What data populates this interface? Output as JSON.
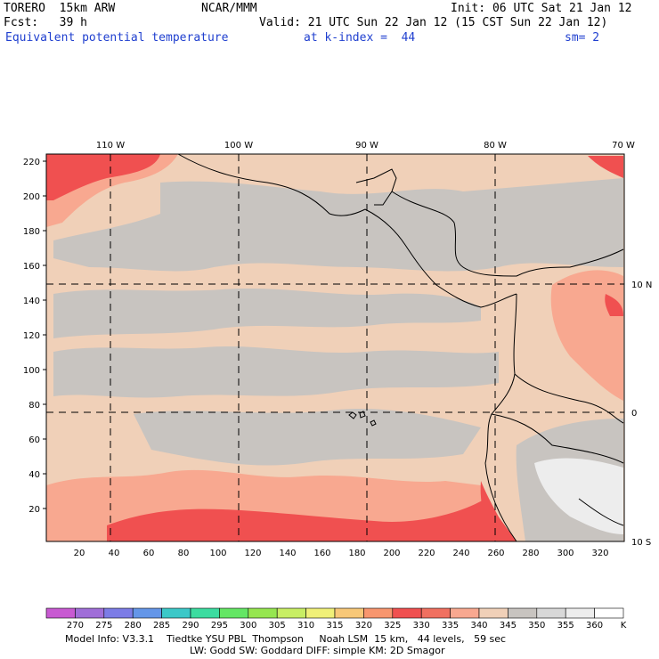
{
  "header": {
    "model": "TORERO  15km ARW",
    "org": "NCAR/MMM",
    "init": "Init: 06 UTC Sat 21 Jan 12",
    "fcst": "Fcst:   39 h",
    "valid": "Valid: 21 UTC Sun 22 Jan 12 (15 CST Sun 22 Jan 12)",
    "field": "Equivalent potential temperature",
    "level": "at k-index =  44",
    "smooth": "sm= 2"
  },
  "map": {
    "lon_labels": [
      "110 W",
      "100 W",
      "90 W",
      "80 W",
      "70 W"
    ],
    "lat_labels": [
      "10 N",
      "0",
      "10 S"
    ],
    "y_ticks": [
      "220",
      "200",
      "180",
      "160",
      "140",
      "120",
      "100",
      "80",
      "60",
      "40",
      "20"
    ],
    "x_ticks": [
      "20",
      "40",
      "60",
      "80",
      "100",
      "120",
      "140",
      "160",
      "180",
      "200",
      "220",
      "240",
      "260",
      "280",
      "300",
      "320"
    ]
  },
  "colorbar": {
    "unit": "K",
    "labels": [
      "270",
      "275",
      "280",
      "285",
      "290",
      "295",
      "300",
      "305",
      "310",
      "315",
      "320",
      "325",
      "330",
      "335",
      "340",
      "345",
      "350",
      "355",
      "360"
    ],
    "colors": [
      "#c85ad2",
      "#a06ed8",
      "#7c7ce6",
      "#6496e8",
      "#3cc8c8",
      "#3cdca0",
      "#64e664",
      "#96e650",
      "#c8ee64",
      "#f0f078",
      "#f8c878",
      "#f8966e",
      "#f05050",
      "#f07060",
      "#f8a890",
      "#f0d0b8",
      "#c8c4c0",
      "#d8d8d8",
      "#ededed",
      "#ffffff"
    ]
  },
  "footer": {
    "line1": "Model Info: V3.3.1    Tiedtke YSU PBL  Thompson     Noah LSM  15 km,   44 levels,   59 sec",
    "line2": "LW: Godd SW: Goddard DIFF: simple KM: 2D Smagor"
  }
}
